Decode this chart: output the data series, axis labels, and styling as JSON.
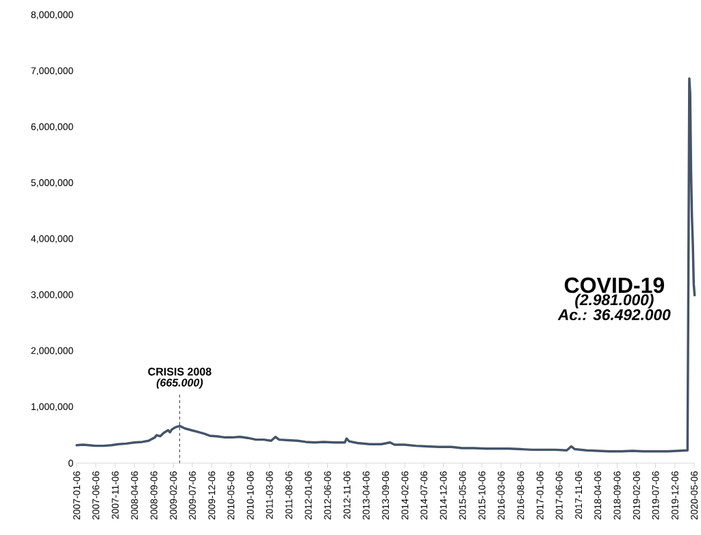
{
  "chart_data": {
    "type": "line",
    "x": [
      "2007-01-06",
      "2007-02-24",
      "2007-04-14",
      "2007-06-02",
      "2007-08-04",
      "2007-10-06",
      "2007-12-01",
      "2008-02-02",
      "2008-04-05",
      "2008-06-07",
      "2008-07-26",
      "2008-09-13",
      "2008-09-27",
      "2008-10-25",
      "2008-11-22",
      "2008-12-27",
      "2009-01-10",
      "2009-01-24",
      "2009-02-21",
      "2009-03-28",
      "2009-05-09",
      "2009-06-27",
      "2009-08-15",
      "2009-10-03",
      "2009-11-21",
      "2010-01-16",
      "2010-03-20",
      "2010-05-15",
      "2010-07-17",
      "2010-09-18",
      "2010-11-20",
      "2011-01-22",
      "2011-03-19",
      "2011-04-23",
      "2011-05-21",
      "2011-08-06",
      "2011-10-15",
      "2011-12-17",
      "2012-02-25",
      "2012-05-05",
      "2012-08-04",
      "2012-10-20",
      "2012-11-03",
      "2012-11-24",
      "2013-01-26",
      "2013-05-04",
      "2013-08-03",
      "2013-10-12",
      "2013-11-16",
      "2014-02-01",
      "2014-05-03",
      "2014-08-02",
      "2014-11-01",
      "2015-02-07",
      "2015-05-02",
      "2015-08-01",
      "2015-11-07",
      "2016-02-06",
      "2016-05-07",
      "2016-08-06",
      "2016-11-05",
      "2017-02-04",
      "2017-05-06",
      "2017-08-05",
      "2017-09-09",
      "2017-10-07",
      "2018-01-06",
      "2018-04-07",
      "2018-07-07",
      "2018-10-06",
      "2019-01-05",
      "2019-04-06",
      "2019-07-06",
      "2019-10-05",
      "2019-12-28",
      "2020-03-14",
      "2020-03-21",
      "2020-03-28",
      "2020-04-04",
      "2020-04-11",
      "2020-04-18",
      "2020-04-25",
      "2020-05-02",
      "2020-05-09"
    ],
    "series": [
      {
        "color": "#44546a",
        "values": [
          320000,
          330000,
          320000,
          310000,
          310000,
          320000,
          340000,
          350000,
          370000,
          380000,
          400000,
          460000,
          500000,
          480000,
          540000,
          590000,
          550000,
          600000,
          640000,
          665000,
          620000,
          590000,
          560000,
          530000,
          490000,
          480000,
          460000,
          460000,
          470000,
          450000,
          420000,
          420000,
          400000,
          470000,
          420000,
          410000,
          400000,
          380000,
          370000,
          380000,
          370000,
          370000,
          440000,
          390000,
          360000,
          340000,
          340000,
          370000,
          330000,
          330000,
          310000,
          300000,
          290000,
          290000,
          270000,
          270000,
          260000,
          260000,
          260000,
          250000,
          240000,
          240000,
          240000,
          230000,
          300000,
          250000,
          230000,
          220000,
          210000,
          210000,
          220000,
          210000,
          210000,
          210000,
          220000,
          230000,
          3300000,
          6870000,
          6600000,
          5200000,
          4400000,
          3900000,
          3200000,
          3000000
        ]
      }
    ],
    "xlim": [
      "2007-01-06",
      "2020-05-09"
    ],
    "xticks": [
      "2007-01-06",
      "2007-06-06",
      "2007-11-06",
      "2008-04-06",
      "2008-09-06",
      "2009-02-06",
      "2009-07-06",
      "2009-12-06",
      "2010-05-06",
      "2010-10-06",
      "2011-03-06",
      "2011-08-06",
      "2012-01-06",
      "2012-06-06",
      "2012-11-06",
      "2013-04-06",
      "2013-09-06",
      "2014-02-06",
      "2014-07-06",
      "2014-12-06",
      "2015-05-06",
      "2015-10-06",
      "2016-03-06",
      "2016-08-06",
      "2017-01-06",
      "2017-06-06",
      "2017-11-06",
      "2018-04-06",
      "2018-09-06",
      "2019-02-06",
      "2019-07-06",
      "2019-12-06",
      "2020-05-06"
    ],
    "ylim": [
      0,
      8000000
    ],
    "yticks": [
      0,
      {
        "value": 1000000,
        "label": "1,000,000"
      },
      {
        "value": 2000000,
        "label": "2,000,000"
      },
      {
        "value": 3000000,
        "label": "3,000,000"
      },
      {
        "value": 4000000,
        "label": "4,000,000"
      },
      {
        "value": 5000000,
        "label": "5,000,000"
      },
      {
        "value": 6000000,
        "label": "6,000,000"
      },
      {
        "value": 7000000,
        "label": "7,000,000"
      },
      {
        "value": 8000000,
        "label": "8,000,000"
      }
    ],
    "ref_lines": [
      {
        "axis": "x",
        "value": "2009-03-28",
        "color": "#000000",
        "line_style": "dashed"
      }
    ],
    "annotations": [
      "CRISIS 2008",
      "*(665.000)*",
      {
        "text": "COVID-19",
        "x": "2020-05-09",
        "y": 3000000
      },
      {
        "text": "*(2.981.000)*",
        "x": "2020-05-09",
        "y": 3000000
      },
      {
        "text": "*Ac.: 36.492.000*",
        "x": "2020-05-09",
        "y": 3000000
      }
    ],
    "grid": false
  }
}
